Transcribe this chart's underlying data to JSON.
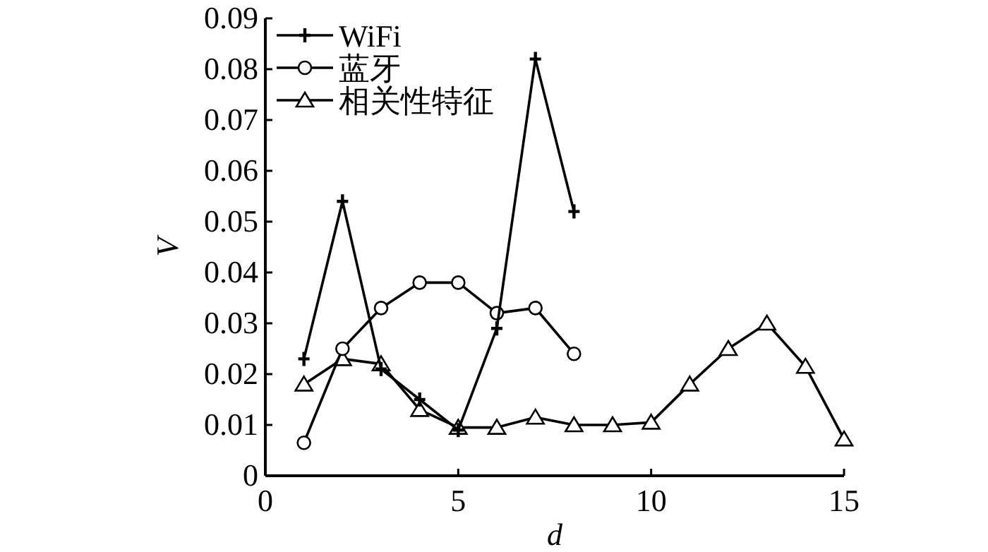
{
  "chart_data": {
    "type": "line",
    "xlabel": "d",
    "ylabel": "V",
    "xlim": [
      0,
      15
    ],
    "ylim": [
      0,
      0.09
    ],
    "xticks": [
      0,
      5,
      10,
      15
    ],
    "yticks": [
      0,
      0.01,
      0.02,
      0.03,
      0.04,
      0.05,
      0.06,
      0.07,
      0.08,
      0.09
    ],
    "grid": false,
    "legend": "top left",
    "line_style": "solid",
    "series": [
      {
        "name": "WiFi",
        "color": "#000000",
        "marker": "cross",
        "x": [
          1,
          2,
          3,
          4,
          5,
          6,
          7,
          8
        ],
        "values": [
          0.023,
          0.054,
          0.021,
          0.015,
          0.009,
          0.029,
          0.082,
          0.052
        ]
      },
      {
        "name": "蓝牙",
        "color": "#000000",
        "marker": "circle",
        "x": [
          1,
          2,
          3,
          4,
          5,
          6,
          7,
          8
        ],
        "values": [
          0.0065,
          0.025,
          0.033,
          0.038,
          0.038,
          0.032,
          0.033,
          0.024
        ]
      },
      {
        "name": "相关性特征",
        "color": "#000000",
        "marker": "triangle",
        "x": [
          1,
          2,
          3,
          4,
          5,
          6,
          7,
          8,
          9,
          10,
          11,
          12,
          13,
          14,
          15
        ],
        "values": [
          0.018,
          0.023,
          0.022,
          0.013,
          0.0095,
          0.0095,
          0.0115,
          0.01,
          0.01,
          0.0105,
          0.018,
          0.025,
          0.03,
          0.0215,
          0.0072
        ]
      }
    ]
  }
}
